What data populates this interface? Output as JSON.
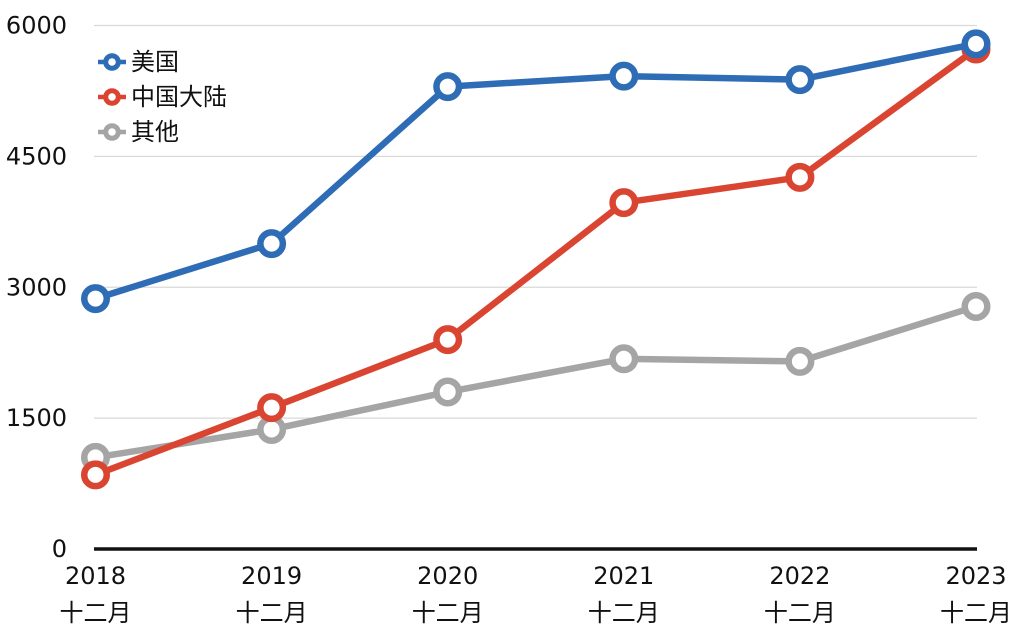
{
  "chart_data": {
    "type": "line",
    "title": "",
    "xlabel": "",
    "ylabel": "",
    "categories": [
      {
        "year": "2018",
        "month": "十二月"
      },
      {
        "year": "2019",
        "month": "十二月"
      },
      {
        "year": "2020",
        "month": "十二月"
      },
      {
        "year": "2021",
        "month": "十二月"
      },
      {
        "year": "2022",
        "month": "十二月"
      },
      {
        "year": "2023",
        "month": "十二月"
      }
    ],
    "series": [
      {
        "name": "美国",
        "color": "#2E6CB5",
        "values": [
          2870,
          3500,
          5300,
          5420,
          5380,
          5790
        ]
      },
      {
        "name": "中国大陆",
        "color": "#DA4532",
        "values": [
          850,
          1620,
          2400,
          3970,
          4260,
          5730
        ]
      },
      {
        "name": "其他",
        "color": "#A5A5A5",
        "values": [
          1050,
          1370,
          1800,
          2180,
          2150,
          2780
        ]
      }
    ],
    "ylim": [
      0,
      6000
    ],
    "yticks": [
      0,
      1500,
      3000,
      4500,
      6000
    ],
    "grid": true,
    "legend_position": "top-left",
    "colors": {
      "axis": "#111111",
      "gridline": "#D9D9D9",
      "label": "#111111",
      "background": "#FFFFFF",
      "marker_fill": "#FFFFFF"
    }
  }
}
